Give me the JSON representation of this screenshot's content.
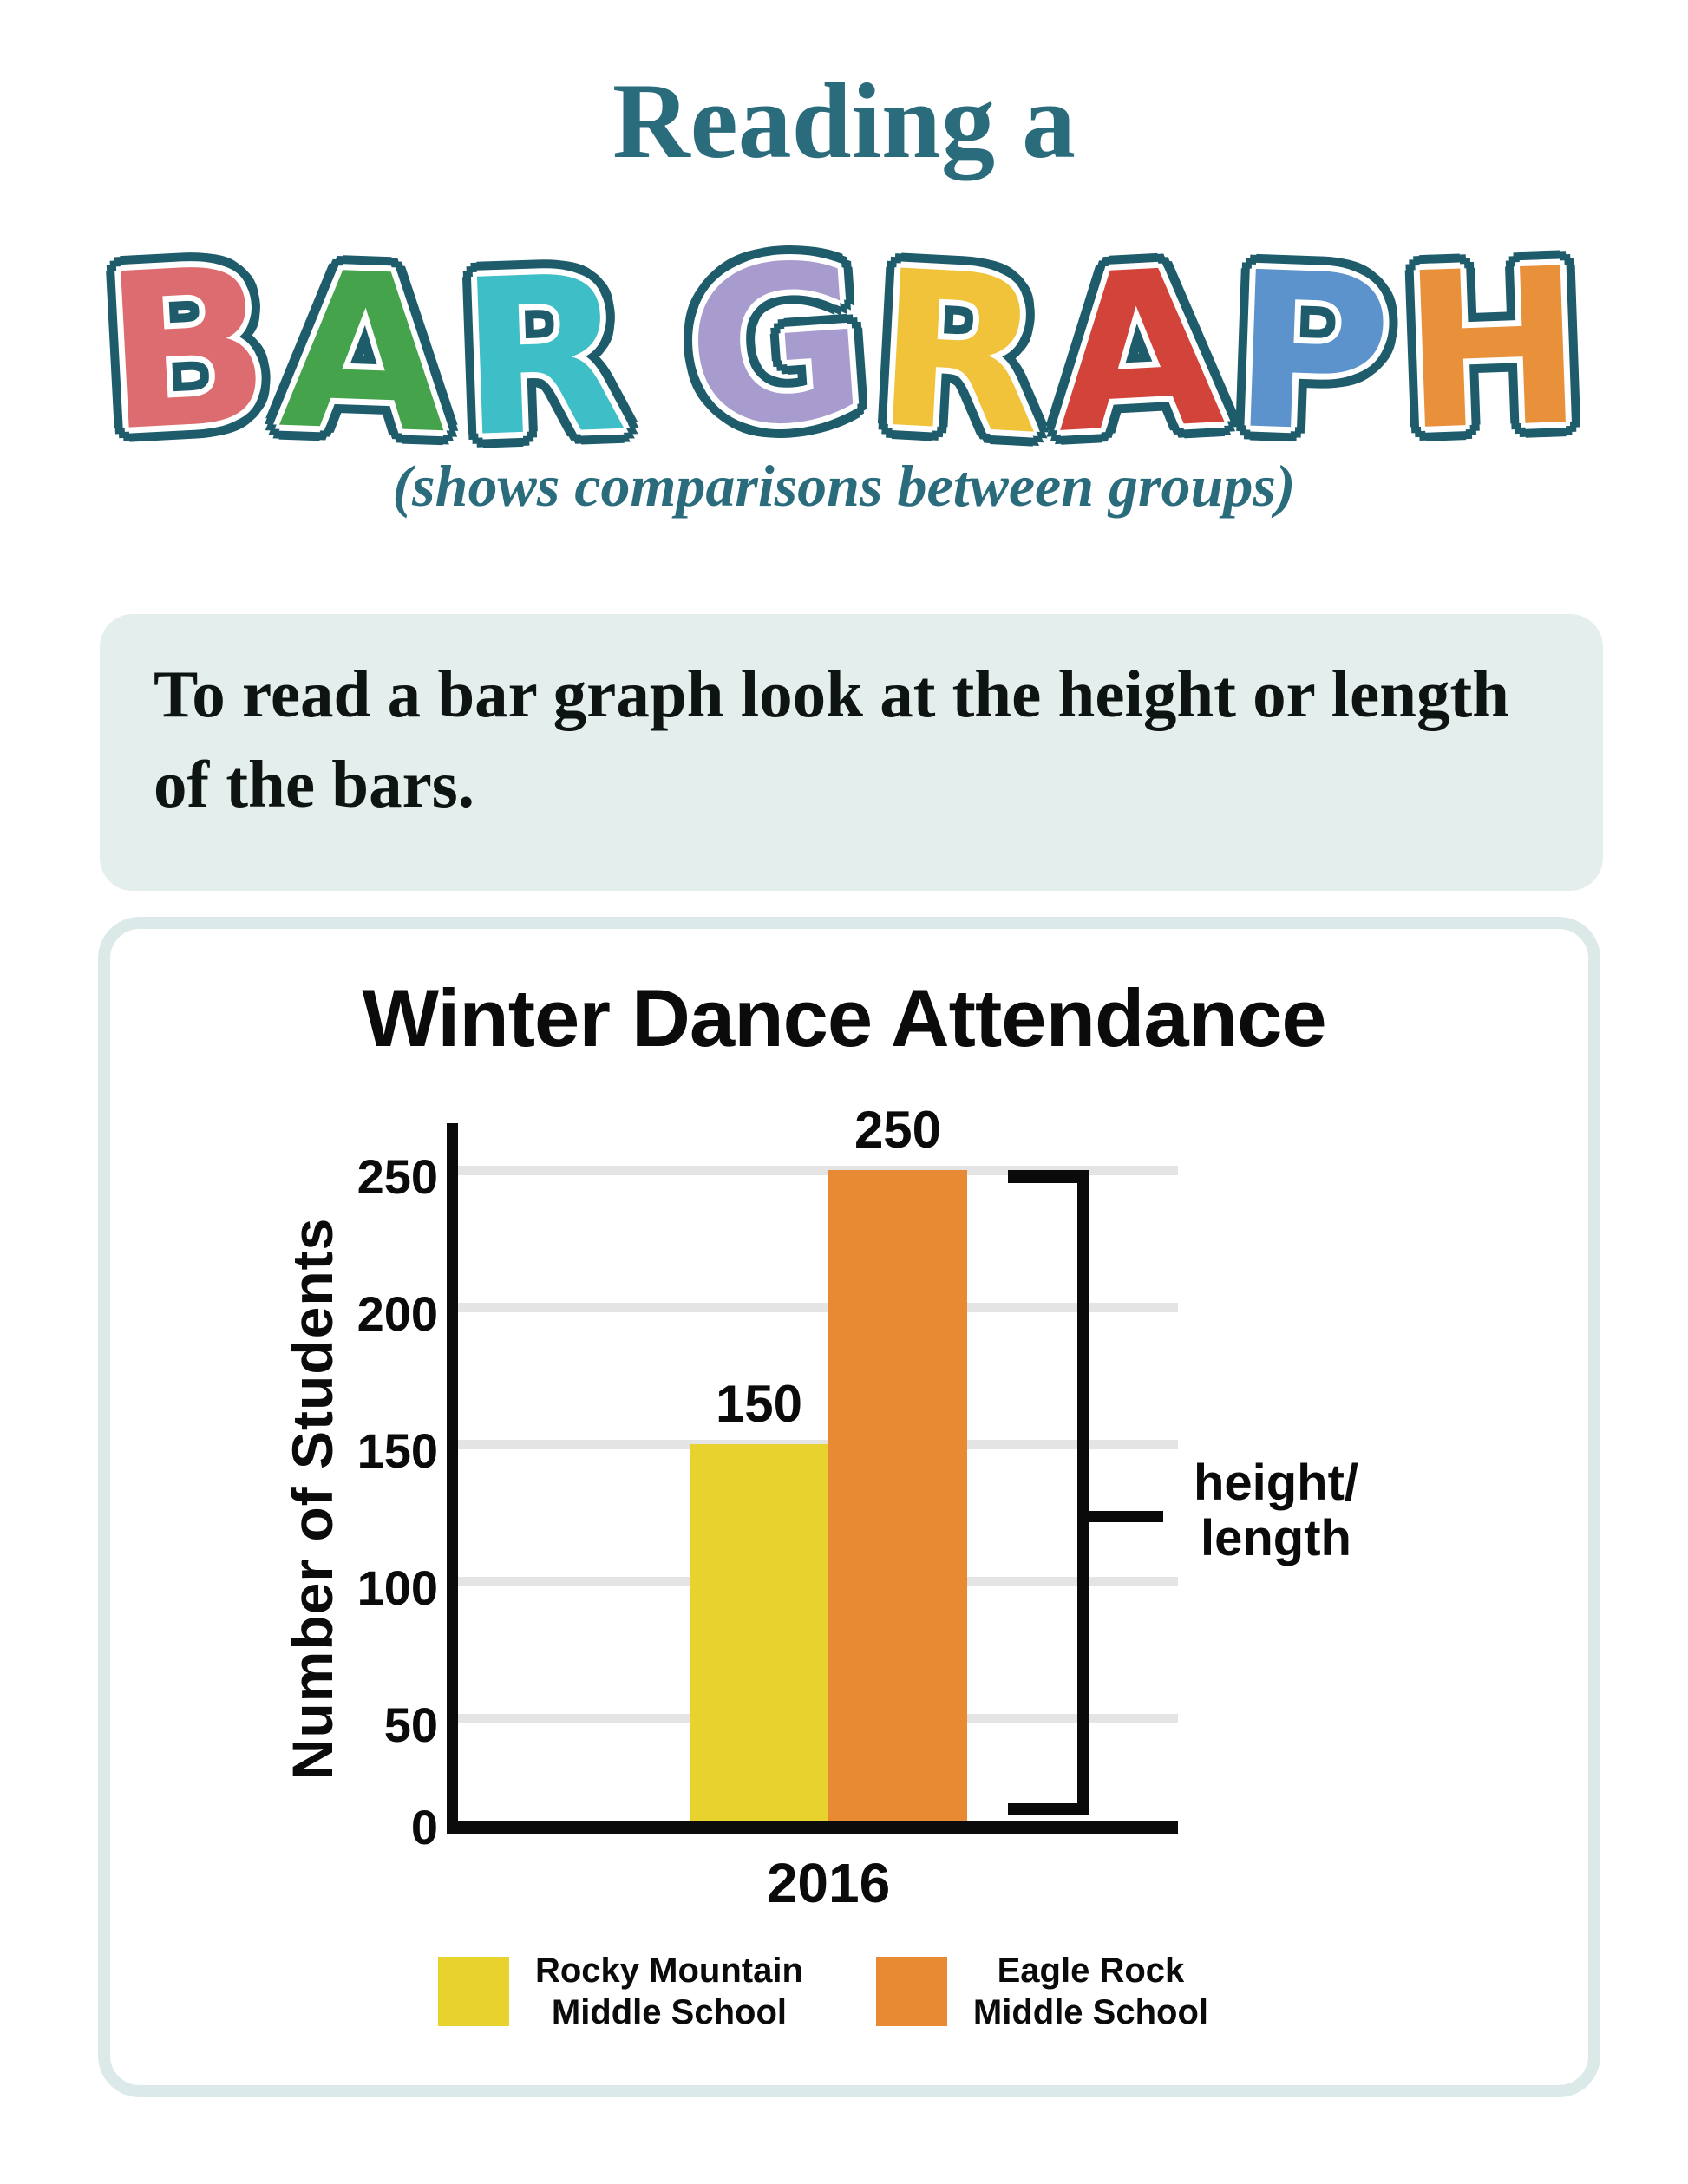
{
  "palette": {
    "teal_text": "#2A6B7C",
    "wordmark_outline": "#1E5C6B",
    "intro_bg": "#E4EEED",
    "card_border": "#DBE9E9",
    "gridline": "#E4E4E4",
    "axis_black": "#0B0B0B"
  },
  "header": {
    "kicker": "Reading a",
    "wordmark_letters": [
      {
        "char": "B",
        "color": "#DC6C70",
        "rot": -3,
        "dy": 6
      },
      {
        "char": "A",
        "color": "#44A34B",
        "rot": 2,
        "dy": 10
      },
      {
        "char": "R",
        "color": "#3EBEC6",
        "rot": -2,
        "dy": 14
      },
      {
        "char": " "
      },
      {
        "char": "G",
        "color": "#A89CCF",
        "rot": -4,
        "dy": 2
      },
      {
        "char": "R",
        "color": "#F0C33A",
        "rot": 3,
        "dy": 10
      },
      {
        "char": "A",
        "color": "#D2433A",
        "rot": -3,
        "dy": 8
      },
      {
        "char": "P",
        "color": "#5C93CC",
        "rot": 2,
        "dy": 10
      },
      {
        "char": "H",
        "color": "#E8913A",
        "rot": -2,
        "dy": 6
      }
    ],
    "subtitle": "(shows comparisons between groups)"
  },
  "intro": {
    "lines": [
      "To read a bar graph look at the height or length",
      "of the bars."
    ]
  },
  "chart_data": {
    "type": "bar",
    "title": "Winter Dance Attendance",
    "categories": [
      "2016"
    ],
    "series": [
      {
        "name": "Rocky Mountain Middle School",
        "name_lines": [
          "Rocky Mountain",
          "Middle School"
        ],
        "color": "#E7D22E",
        "values": [
          150
        ]
      },
      {
        "name": "Eagle Rock Middle School",
        "name_lines": [
          "Eagle Rock",
          "Middle School"
        ],
        "color": "#E78A33",
        "values": [
          250
        ]
      }
    ],
    "ylabel": "Number of Students",
    "yticks": [
      0,
      50,
      100,
      150,
      200,
      250
    ],
    "ylim": [
      0,
      265
    ],
    "grid": true,
    "legend_position": "bottom",
    "value_labels_shown": true,
    "annotation": {
      "lines": [
        "height/",
        "length"
      ]
    }
  }
}
